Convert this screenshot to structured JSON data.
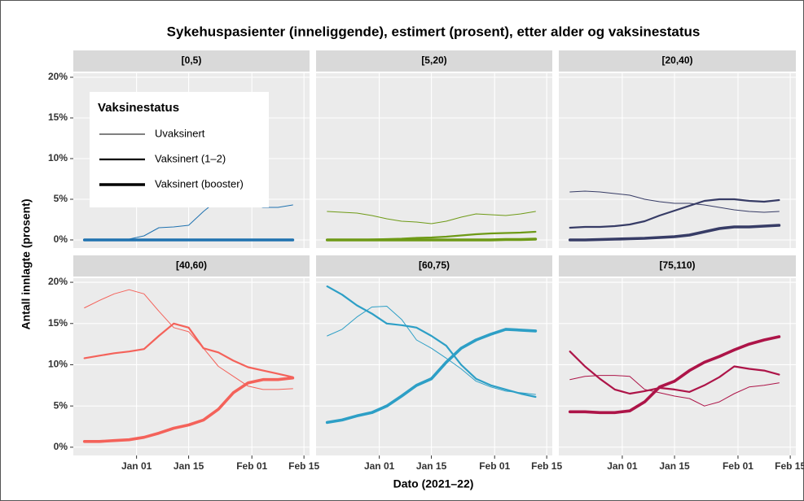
{
  "title": "Sykehuspasienter (inneliggende), estimert (prosent), etter alder og vaksinestatus",
  "x_label": "Dato (2021–22)",
  "y_label": "Antall innlagte (prosent)",
  "legend_title": "Vaksinestatus",
  "xlim": [
    -17,
    46.5
  ],
  "xticks": [
    {
      "value": 0,
      "label": "Jan 01"
    },
    {
      "value": 14,
      "label": "Jan 15"
    },
    {
      "value": 31,
      "label": "Feb 01"
    },
    {
      "value": 45,
      "label": "Feb 15"
    }
  ],
  "ylim": [
    -1,
    20.5
  ],
  "yticks": [
    {
      "value": 0,
      "label": "0%"
    },
    {
      "value": 5,
      "label": "5%"
    },
    {
      "value": 10,
      "label": "10%"
    },
    {
      "value": 15,
      "label": "15%"
    },
    {
      "value": 20,
      "label": "20%"
    }
  ],
  "chart_data": [
    {
      "type": "line",
      "title": "[0,5)",
      "x": [
        -14,
        -10,
        -6,
        -2,
        2,
        6,
        10,
        14,
        18,
        22,
        26,
        30,
        34,
        38,
        42
      ],
      "series": [
        {
          "name": "Uvaksinert",
          "color": "#1f72b0",
          "line_width": 1,
          "values": [
            0,
            0,
            0,
            0.1,
            0.5,
            1.5,
            1.6,
            1.8,
            3.5,
            5,
            5,
            4.5,
            4.0,
            4.0,
            4.3
          ]
        },
        {
          "name": "Vaksinert (1–2)",
          "color": "#1f72b0",
          "line_width": 2.2,
          "values": [
            0,
            0,
            0,
            0,
            0,
            0,
            0,
            0,
            0,
            0,
            0,
            0,
            0,
            0,
            0
          ]
        },
        {
          "name": "Vaksinert (booster)",
          "color": "#1f72b0",
          "line_width": 3.6,
          "values": [
            0,
            0,
            0,
            0,
            0,
            0,
            0,
            0,
            0,
            0,
            0,
            0,
            0,
            0,
            0
          ]
        }
      ]
    },
    {
      "type": "line",
      "title": "[5,20)",
      "x": [
        -14,
        -10,
        -6,
        -2,
        2,
        6,
        10,
        14,
        18,
        22,
        26,
        30,
        34,
        38,
        42
      ],
      "series": [
        {
          "name": "Uvaksinert",
          "color": "#6e9a16",
          "line_width": 1,
          "values": [
            3.5,
            3.4,
            3.3,
            3.0,
            2.6,
            2.3,
            2.2,
            2.0,
            2.3,
            2.8,
            3.2,
            3.1,
            3.0,
            3.2,
            3.5
          ]
        },
        {
          "name": "Vaksinert (1–2)",
          "color": "#6e9a16",
          "line_width": 2.2,
          "values": [
            0,
            0,
            0,
            0.05,
            0.1,
            0.15,
            0.25,
            0.3,
            0.4,
            0.55,
            0.7,
            0.8,
            0.85,
            0.9,
            1.0
          ]
        },
        {
          "name": "Vaksinert (booster)",
          "color": "#6e9a16",
          "line_width": 3.6,
          "values": [
            0,
            0,
            0,
            0,
            0,
            0,
            0,
            0,
            0,
            0,
            0,
            0,
            0.05,
            0.05,
            0.1
          ]
        }
      ]
    },
    {
      "type": "line",
      "title": "[20,40)",
      "x": [
        -14,
        -10,
        -6,
        -2,
        2,
        6,
        10,
        14,
        18,
        22,
        26,
        30,
        34,
        38,
        42
      ],
      "series": [
        {
          "name": "Uvaksinert",
          "color": "#373c66",
          "line_width": 1,
          "values": [
            5.9,
            6.0,
            5.9,
            5.7,
            5.5,
            5.0,
            4.7,
            4.5,
            4.5,
            4.3,
            4.0,
            3.7,
            3.5,
            3.4,
            3.5
          ]
        },
        {
          "name": "Vaksinert (1–2)",
          "color": "#373c66",
          "line_width": 2.2,
          "values": [
            1.5,
            1.6,
            1.6,
            1.7,
            1.9,
            2.3,
            3.0,
            3.6,
            4.2,
            4.8,
            5.0,
            5.0,
            4.8,
            4.7,
            4.9
          ]
        },
        {
          "name": "Vaksinert (booster)",
          "color": "#373c66",
          "line_width": 3.6,
          "values": [
            0,
            0,
            0.05,
            0.1,
            0.15,
            0.2,
            0.3,
            0.4,
            0.6,
            1.0,
            1.4,
            1.6,
            1.6,
            1.7,
            1.8
          ]
        }
      ]
    },
    {
      "type": "line",
      "title": "[40,60)",
      "x": [
        -14,
        -10,
        -6,
        -2,
        2,
        6,
        10,
        14,
        18,
        22,
        26,
        30,
        34,
        38,
        42
      ],
      "series": [
        {
          "name": "Uvaksinert",
          "color": "#f4625a",
          "line_width": 1,
          "values": [
            16.9,
            17.8,
            18.6,
            19.1,
            18.6,
            16.5,
            14.5,
            14.0,
            12,
            9.8,
            8.6,
            7.4,
            7.0,
            7.0,
            7.1
          ]
        },
        {
          "name": "Vaksinert (1–2)",
          "color": "#f4625a",
          "line_width": 2.2,
          "values": [
            10.8,
            11.1,
            11.4,
            11.6,
            11.9,
            13.5,
            15.0,
            14.5,
            12,
            11.5,
            10.5,
            9.7,
            9.3,
            8.9,
            8.5
          ]
        },
        {
          "name": "Vaksinert (booster)",
          "color": "#f4625a",
          "line_width": 3.6,
          "values": [
            0.7,
            0.7,
            0.8,
            0.9,
            1.2,
            1.7,
            2.3,
            2.7,
            3.3,
            4.6,
            6.6,
            7.8,
            8.2,
            8.2,
            8.4
          ]
        }
      ]
    },
    {
      "type": "line",
      "title": "[60,75)",
      "x": [
        -14,
        -10,
        -6,
        -2,
        2,
        6,
        10,
        14,
        18,
        22,
        26,
        30,
        34,
        38,
        42
      ],
      "series": [
        {
          "name": "Uvaksinert",
          "color": "#2d9fc6",
          "line_width": 1,
          "values": [
            13.5,
            14.3,
            15.8,
            17.0,
            17.1,
            15.5,
            13.0,
            12.0,
            10.8,
            9.5,
            8.0,
            7.3,
            6.8,
            6.6,
            6.4
          ]
        },
        {
          "name": "Vaksinert (1–2)",
          "color": "#2d9fc6",
          "line_width": 2.2,
          "values": [
            19.5,
            18.5,
            17.2,
            16.2,
            15.0,
            14.8,
            14.5,
            13.5,
            12.3,
            10.0,
            8.3,
            7.5,
            7.0,
            6.5,
            6.1
          ]
        },
        {
          "name": "Vaksinert (booster)",
          "color": "#2d9fc6",
          "line_width": 3.6,
          "values": [
            3.0,
            3.3,
            3.8,
            4.2,
            5.0,
            6.2,
            7.5,
            8.3,
            10.3,
            12.0,
            13.0,
            13.7,
            14.3,
            14.2,
            14.1
          ]
        }
      ]
    },
    {
      "type": "line",
      "title": "[75,110)",
      "x": [
        -14,
        -10,
        -6,
        -2,
        2,
        6,
        10,
        14,
        18,
        22,
        26,
        30,
        34,
        38,
        42
      ],
      "series": [
        {
          "name": "Uvaksinert",
          "color": "#ad1448",
          "line_width": 1,
          "values": [
            8.2,
            8.6,
            8.7,
            8.7,
            8.6,
            7.0,
            6.6,
            6.2,
            5.9,
            5.0,
            5.5,
            6.5,
            7.3,
            7.5,
            7.8
          ]
        },
        {
          "name": "Vaksinert (1–2)",
          "color": "#ad1448",
          "line_width": 2.2,
          "values": [
            11.6,
            9.8,
            8.3,
            7.0,
            6.5,
            6.8,
            7.2,
            7.0,
            6.7,
            7.5,
            8.5,
            9.8,
            9.5,
            9.3,
            8.8
          ]
        },
        {
          "name": "Vaksinert (booster)",
          "color": "#ad1448",
          "line_width": 3.6,
          "values": [
            4.3,
            4.3,
            4.2,
            4.2,
            4.4,
            5.5,
            7.3,
            8.0,
            9.3,
            10.3,
            11.0,
            11.8,
            12.5,
            13.0,
            13.4
          ]
        }
      ]
    }
  ]
}
